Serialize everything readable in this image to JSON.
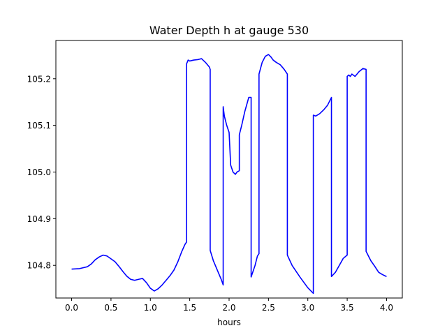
{
  "chart_data": {
    "type": "line",
    "title": "Water Depth h at gauge 530",
    "xlabel": "hours",
    "ylabel": "",
    "xlim": [
      -0.2,
      4.2
    ],
    "ylim": [
      104.73,
      105.282
    ],
    "x_ticks": [
      "0.0",
      "0.5",
      "1.0",
      "1.5",
      "2.0",
      "2.5",
      "3.0",
      "3.5",
      "4.0"
    ],
    "y_ticks": [
      "104.8",
      "104.9",
      "105.0",
      "105.1",
      "105.2"
    ],
    "x_tick_values": [
      0,
      0.5,
      1.0,
      1.5,
      2.0,
      2.5,
      3.0,
      3.5,
      4.0
    ],
    "y_tick_values": [
      104.8,
      104.9,
      105.0,
      105.1,
      105.2
    ],
    "grid": false,
    "series": [
      {
        "color": "#0000ff",
        "x": [
          0.0,
          0.1,
          0.2,
          0.25,
          0.3,
          0.35,
          0.4,
          0.45,
          0.5,
          0.55,
          0.6,
          0.65,
          0.7,
          0.75,
          0.8,
          0.85,
          0.9,
          0.95,
          1.0,
          1.05,
          1.1,
          1.15,
          1.2,
          1.25,
          1.3,
          1.35,
          1.4,
          1.44,
          1.46,
          1.46,
          1.48,
          1.5,
          1.55,
          1.6,
          1.65,
          1.7,
          1.75,
          1.76,
          1.76,
          1.8,
          1.85,
          1.9,
          1.925,
          1.925,
          1.94,
          1.97,
          2.0,
          2.02,
          2.02,
          2.05,
          2.08,
          2.1,
          2.13,
          2.13,
          2.16,
          2.2,
          2.25,
          2.28,
          2.28,
          2.3,
          2.33,
          2.36,
          2.38,
          2.38,
          2.42,
          2.46,
          2.5,
          2.53,
          2.56,
          2.6,
          2.65,
          2.7,
          2.74,
          2.74,
          2.8,
          2.9,
          3.0,
          3.07,
          3.07,
          3.1,
          3.15,
          3.2,
          3.25,
          3.3,
          3.3,
          3.35,
          3.4,
          3.45,
          3.5,
          3.5,
          3.52,
          3.54,
          3.56,
          3.6,
          3.65,
          3.7,
          3.74,
          3.74,
          3.8,
          3.85,
          3.9,
          3.95,
          4.0
        ],
        "y": [
          104.792,
          104.793,
          104.797,
          104.803,
          104.812,
          104.818,
          104.822,
          104.82,
          104.814,
          104.808,
          104.798,
          104.787,
          104.777,
          104.77,
          104.768,
          104.77,
          104.772,
          104.763,
          104.751,
          104.745,
          104.75,
          104.758,
          104.768,
          104.778,
          104.79,
          104.808,
          104.83,
          104.845,
          104.85,
          105.232,
          105.24,
          105.238,
          105.24,
          105.241,
          105.243,
          105.235,
          105.225,
          105.22,
          104.832,
          104.81,
          104.79,
          104.77,
          104.758,
          105.14,
          105.12,
          105.1,
          105.085,
          105.015,
          105.015,
          105.0,
          104.995,
          105.0,
          105.003,
          105.08,
          105.1,
          105.13,
          105.16,
          105.16,
          104.775,
          104.785,
          104.8,
          104.82,
          104.825,
          105.21,
          105.235,
          105.248,
          105.252,
          105.247,
          105.24,
          105.235,
          105.23,
          105.22,
          105.21,
          104.822,
          104.8,
          104.775,
          104.752,
          104.74,
          105.122,
          105.12,
          105.125,
          105.133,
          105.143,
          105.16,
          104.776,
          104.785,
          104.8,
          104.815,
          104.822,
          105.205,
          105.208,
          105.205,
          105.21,
          105.205,
          105.215,
          105.222,
          105.22,
          104.83,
          104.81,
          104.798,
          104.785,
          104.78,
          104.776
        ]
      }
    ]
  }
}
